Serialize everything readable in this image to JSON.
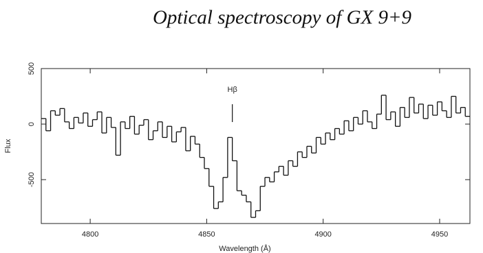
{
  "chart_data": {
    "type": "step",
    "title": "Optical spectroscopy of GX 9+9",
    "xlabel": "Wavelength (Å)",
    "ylabel": "Flux",
    "x": [
      4780,
      4782,
      4784,
      4786,
      4788,
      4790,
      4792,
      4794,
      4796,
      4798,
      4800,
      4802,
      4804,
      4806,
      4808,
      4810,
      4812,
      4814,
      4816,
      4818,
      4820,
      4822,
      4824,
      4826,
      4828,
      4830,
      4832,
      4834,
      4836,
      4838,
      4840,
      4842,
      4844,
      4846,
      4848,
      4850,
      4852,
      4854,
      4856,
      4858,
      4860,
      4862,
      4864,
      4866,
      4868,
      4870,
      4872,
      4874,
      4876,
      4878,
      4880,
      4882,
      4884,
      4886,
      4888,
      4890,
      4892,
      4894,
      4896,
      4898,
      4900,
      4902,
      4904,
      4906,
      4908,
      4910,
      4912,
      4914,
      4916,
      4918,
      4920,
      4922,
      4924,
      4926,
      4928,
      4930,
      4932,
      4934,
      4936,
      4938,
      4940,
      4942,
      4944,
      4946,
      4948,
      4950,
      4952,
      4954,
      4956,
      4958,
      4960,
      4962
    ],
    "values": [
      50,
      -60,
      120,
      80,
      140,
      20,
      -40,
      60,
      10,
      100,
      -20,
      40,
      110,
      -80,
      60,
      -30,
      -280,
      20,
      -40,
      70,
      -90,
      -10,
      40,
      -140,
      -60,
      20,
      -120,
      -20,
      -160,
      -70,
      -30,
      -240,
      -110,
      -180,
      -300,
      -400,
      -560,
      -760,
      -700,
      -480,
      -120,
      -330,
      -600,
      -640,
      -700,
      -840,
      -780,
      -560,
      -480,
      -520,
      -430,
      -380,
      -460,
      -330,
      -380,
      -250,
      -300,
      -200,
      -260,
      -120,
      -180,
      -80,
      -140,
      -40,
      -90,
      30,
      -60,
      60,
      0,
      120,
      20,
      -40,
      90,
      260,
      40,
      110,
      -20,
      150,
      60,
      240,
      100,
      180,
      50,
      170,
      80,
      200,
      120,
      60,
      250,
      100,
      150,
      70
    ],
    "color": "#111111",
    "xlim": [
      4779,
      4963
    ],
    "ylim": [
      -895,
      500
    ],
    "xticks": [
      4800,
      4850,
      4900,
      4950
    ],
    "yticks": [
      -500,
      0,
      500
    ],
    "annotations": [
      {
        "text": "Hβ",
        "x": 4861
      }
    ]
  }
}
